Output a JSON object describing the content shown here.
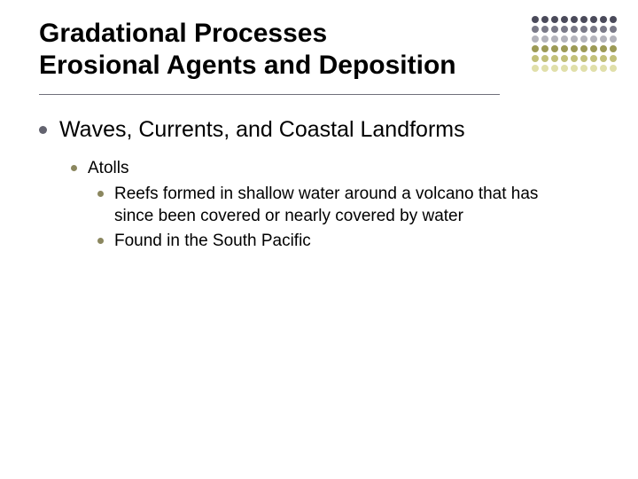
{
  "colors": {
    "bullet_l1": "#63636f",
    "bullet_l2": "#8b875f",
    "bullet_l3": "#8b875f",
    "rule": "#6f6f7a",
    "dot_rows": [
      "#4a4a5a",
      "#7a7a88",
      "#b3b3bb",
      "#9c9a56",
      "#c2c07a",
      "#e0dfaa"
    ]
  },
  "title": {
    "line1": "Gradational Processes",
    "line2": "Erosional Agents and Deposition"
  },
  "content": {
    "l1_text": "Waves, Currents, and Coastal Landforms",
    "l2_text": "Atolls",
    "l3a_text": "Reefs formed in shallow water around a volcano that has since been covered or nearly covered by water",
    "l3b_text": "Found in the South Pacific"
  },
  "dots": {
    "cols": 9,
    "rows": 6
  }
}
